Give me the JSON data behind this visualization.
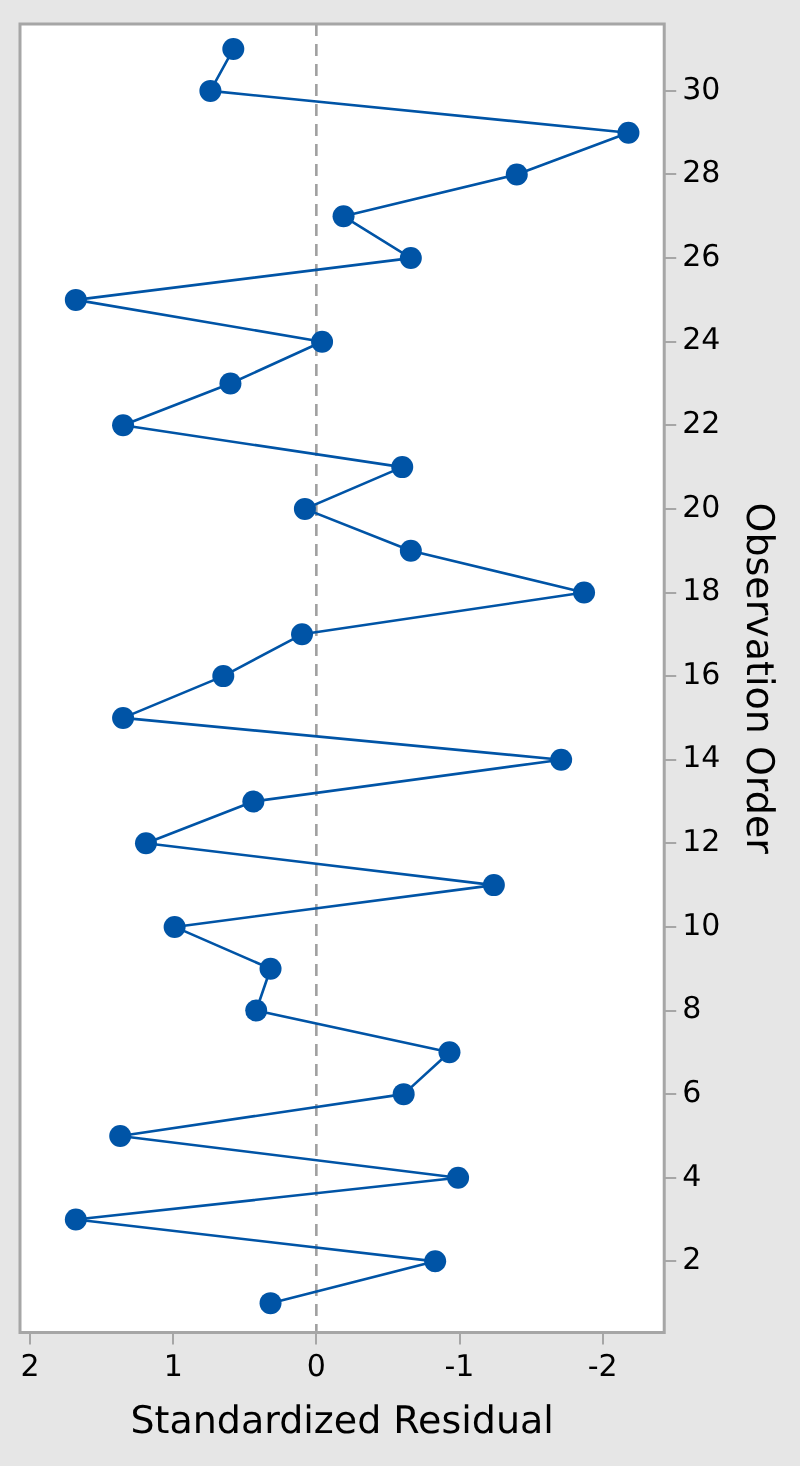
{
  "chart_data": {
    "type": "line",
    "xlabel": "Standardized Residual",
    "ylabel": "Observation Order",
    "x": [
      0.32,
      -0.83,
      1.68,
      -0.99,
      1.37,
      -0.61,
      -0.93,
      0.42,
      0.32,
      0.99,
      -1.24,
      1.19,
      0.44,
      -1.71,
      1.35,
      0.65,
      0.1,
      -1.87,
      -0.66,
      0.08,
      -0.6,
      1.35,
      0.6,
      -0.04,
      1.68,
      -0.66,
      -0.19,
      -1.4,
      -2.18,
      0.74,
      0.58
    ],
    "values": [
      1,
      2,
      3,
      4,
      5,
      6,
      7,
      8,
      9,
      10,
      11,
      12,
      13,
      14,
      15,
      16,
      17,
      18,
      19,
      20,
      21,
      22,
      23,
      24,
      25,
      26,
      27,
      28,
      29,
      30,
      31
    ],
    "color": "#0054a6",
    "marker": "circle",
    "line_style": "solid",
    "xlim": [
      2.07,
      -2.43
    ],
    "xticks": [
      2,
      1,
      0,
      -1,
      -2
    ],
    "ylim": [
      0.3,
      31.6
    ],
    "yticks": [
      2,
      4,
      6,
      8,
      10,
      12,
      14,
      16,
      18,
      20,
      22,
      24,
      26,
      28,
      30
    ],
    "grid": false,
    "legend": false,
    "ref_lines": [
      {
        "axis": "x",
        "value": 0,
        "line_style": "dashed",
        "color": "#a0a0a0"
      }
    ]
  }
}
